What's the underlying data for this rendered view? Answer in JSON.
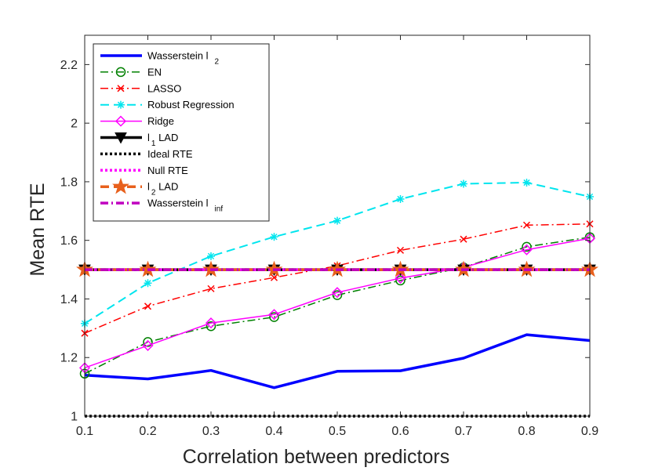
{
  "chart_data": {
    "type": "line",
    "title": "",
    "xlabel": "Correlation between predictors",
    "ylabel": "Mean RTE",
    "xlim": [
      0.1,
      0.9
    ],
    "ylim": [
      1.0,
      2.3
    ],
    "x": [
      0.1,
      0.2,
      0.3,
      0.4,
      0.5,
      0.6,
      0.7,
      0.8,
      0.9
    ],
    "x_tick_labels": [
      "0.1",
      "0.2",
      "0.3",
      "0.4",
      "0.5",
      "0.6",
      "0.7",
      "0.8",
      "0.9"
    ],
    "y_ticks": [
      1.0,
      1.2,
      1.4,
      1.6,
      1.8,
      2.0,
      2.2
    ],
    "y_tick_labels": [
      "1",
      "1.2",
      "1.4",
      "1.6",
      "1.8",
      "2",
      "2.2"
    ],
    "legend_position": "top-left",
    "series": [
      {
        "name": "Wasserstein l",
        "sub": "2",
        "color": "#0000ff",
        "style": "solid",
        "marker": "none",
        "width": 3.5,
        "values": [
          1.14,
          1.127,
          1.156,
          1.097,
          1.153,
          1.155,
          1.198,
          1.278,
          1.258
        ]
      },
      {
        "name": "EN",
        "sub": "",
        "color": "#008000",
        "style": "dashdot",
        "marker": "circle",
        "width": 1.5,
        "values": [
          1.145,
          1.253,
          1.307,
          1.338,
          1.413,
          1.463,
          1.508,
          1.578,
          1.611
        ]
      },
      {
        "name": "LASSO",
        "sub": "",
        "color": "#ff0000",
        "style": "dashdot",
        "marker": "x",
        "width": 1.5,
        "values": [
          1.283,
          1.375,
          1.435,
          1.473,
          1.513,
          1.566,
          1.604,
          1.652,
          1.656
        ]
      },
      {
        "name": "Robust Regression",
        "sub": "",
        "color": "#00e5ee",
        "style": "dashed",
        "marker": "star",
        "width": 2,
        "values": [
          1.316,
          1.454,
          1.546,
          1.612,
          1.667,
          1.741,
          1.793,
          1.797,
          1.749
        ]
      },
      {
        "name": "Ridge",
        "sub": "",
        "color": "#ff00ff",
        "style": "solid",
        "marker": "diamond",
        "width": 1.5,
        "values": [
          1.165,
          1.241,
          1.318,
          1.347,
          1.422,
          1.471,
          1.508,
          1.568,
          1.607
        ]
      },
      {
        "name": "l",
        "sub": "1",
        "suffix": " LAD",
        "color": "#000000",
        "style": "solid",
        "marker": "triangle-down",
        "width": 3.5,
        "values": [
          1.5,
          1.5,
          1.5,
          1.5,
          1.5,
          1.5,
          1.5,
          1.5,
          1.5
        ]
      },
      {
        "name": "Ideal RTE",
        "sub": "",
        "color": "#000000",
        "style": "dotted",
        "marker": "none",
        "width": 3.5,
        "values": [
          1.0,
          1.0,
          1.0,
          1.0,
          1.0,
          1.0,
          1.0,
          1.0,
          1.0
        ]
      },
      {
        "name": "Null RTE",
        "sub": "",
        "color": "#ff00ff",
        "style": "dotted",
        "marker": "none",
        "width": 3.5,
        "values": [
          1.5,
          1.5,
          1.5,
          1.5,
          1.5,
          1.5,
          1.5,
          1.5,
          1.5
        ]
      },
      {
        "name": "l",
        "sub": "2",
        "suffix": " LAD",
        "color": "#e8601c",
        "style": "dashed",
        "marker": "pentagram",
        "width": 3.5,
        "values": [
          1.5,
          1.5,
          1.5,
          1.5,
          1.5,
          1.5,
          1.5,
          1.5,
          1.5
        ]
      },
      {
        "name": "Wasserstein l",
        "sub": "inf",
        "color": "#c000c0",
        "style": "dashdot",
        "marker": "none",
        "width": 3.5,
        "values": [
          1.5,
          1.5,
          1.5,
          1.5,
          1.5,
          1.5,
          1.5,
          1.5,
          1.5
        ]
      }
    ]
  }
}
